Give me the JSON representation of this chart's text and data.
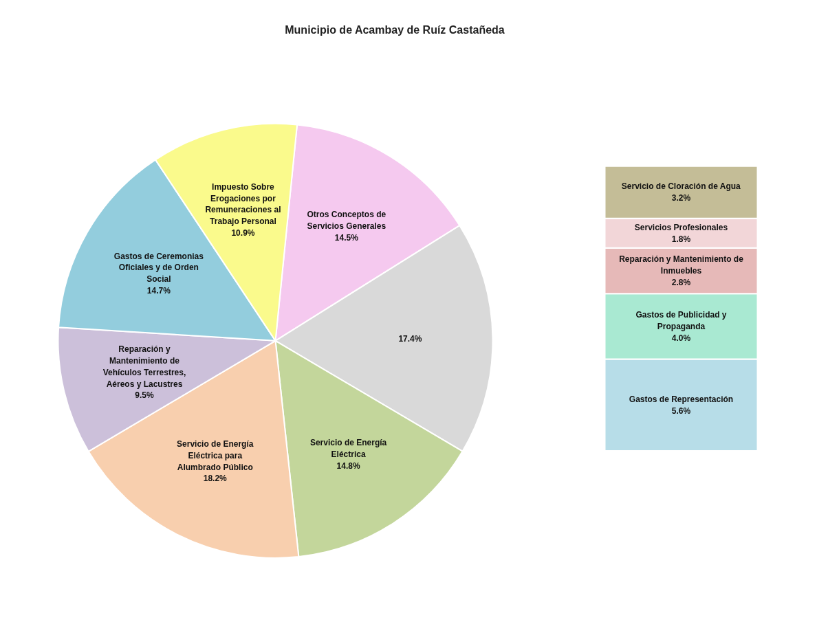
{
  "chart_data": [
    {
      "type": "pie",
      "title": "Municipio de Acambay de Ruíz Castañeda",
      "categories": [
        "Otros Conceptos de Servicios Generales",
        null,
        "Servicio de Energía Eléctrica",
        "Servicio de Energía Eléctrica para Alumbrado Público",
        "Reparación y Mantenimiento de Vehículos Terrestres, Aéreos y Lacustres",
        "Gastos de Ceremonias Oficiales y de Orden Social",
        "Impuesto Sobre Erogaciones por Remuneraciones al Trabajo Personal"
      ],
      "values": [
        14.5,
        17.4,
        14.8,
        18.2,
        9.5,
        14.7,
        10.9
      ],
      "value_labels": [
        "14.5%",
        "17.4%",
        "14.8%",
        "18.2%",
        "9.5%",
        "14.7%",
        "10.9%"
      ],
      "colors": [
        "#f5c9ef",
        "#d9d9d9",
        "#c3d69b",
        "#f8cfae",
        "#ccc0da",
        "#93cddd",
        "#fafa8c"
      ]
    },
    {
      "type": "bar",
      "stacked": true,
      "tick_labels": false,
      "categories": [
        null
      ],
      "series": [
        {
          "name": "Gastos de Representación",
          "color": "#b7dde8",
          "values": [
            5.6
          ],
          "value_labels": [
            "5.6%"
          ]
        },
        {
          "name": "Gastos de Publicidad y Propaganda",
          "color": "#a9e9d2",
          "values": [
            4.0
          ],
          "value_labels": [
            "4.0%"
          ]
        },
        {
          "name": "Reparación y Mantenimiento de Inmuebles",
          "color": "#e6b9b8",
          "values": [
            2.8
          ],
          "value_labels": [
            "2.8%"
          ]
        },
        {
          "name": "Servicios Profesionales",
          "color": "#f2d6d8",
          "values": [
            1.8
          ],
          "value_labels": [
            "1.8%"
          ]
        },
        {
          "name": "Servicio de Cloración de Agua",
          "color": "#c4bd97",
          "values": [
            3.2
          ],
          "value_labels": [
            "3.2%"
          ]
        }
      ]
    }
  ]
}
